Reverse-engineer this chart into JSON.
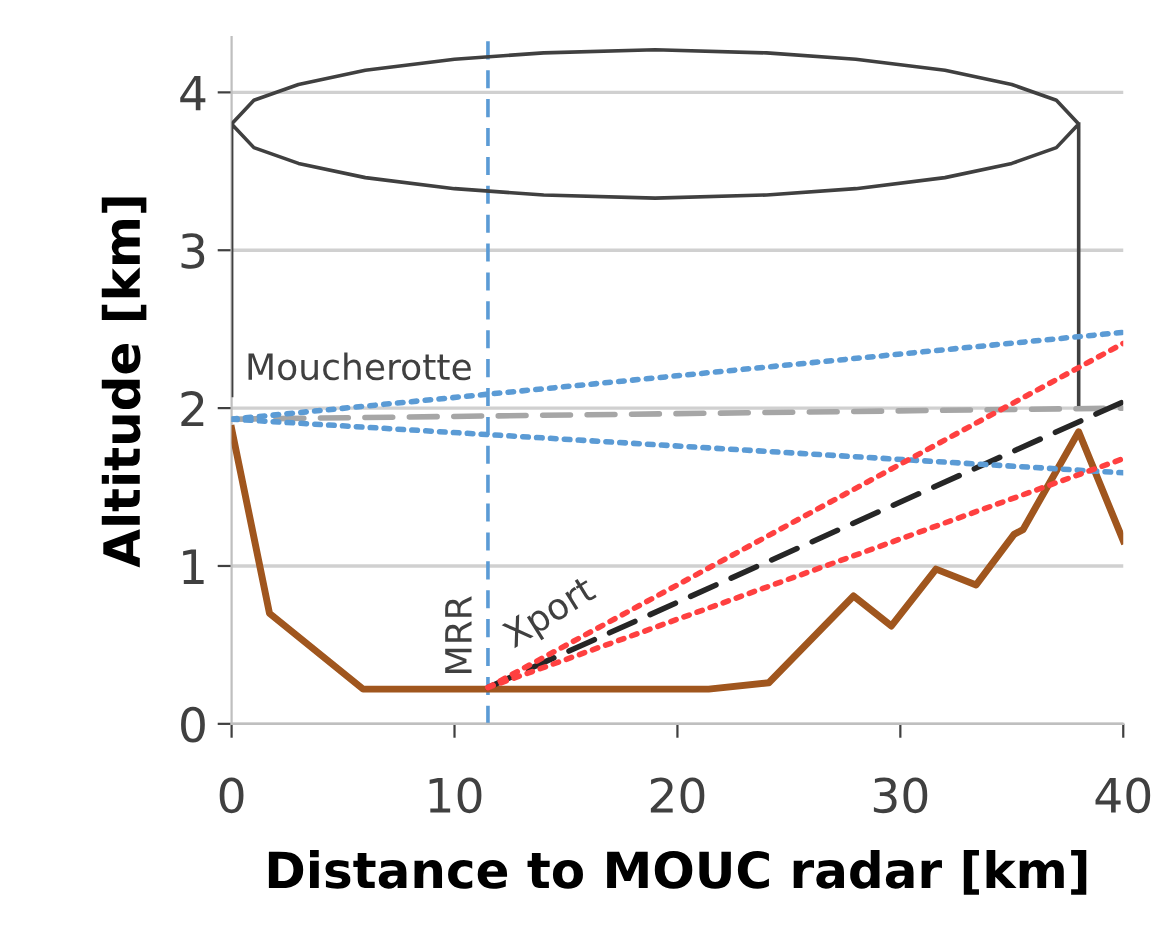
{
  "chart_data": {
    "type": "line",
    "xlabel": "Distance to MOUC radar [km]",
    "ylabel": "Altitude [km]",
    "xlim": [
      0,
      40
    ],
    "ylim": [
      0,
      4.35
    ],
    "xticks": [
      0,
      10,
      20,
      30,
      40
    ],
    "yticks": [
      0,
      1,
      2,
      3,
      4
    ],
    "grid": "y",
    "marker": "none",
    "series": [
      {
        "color": "#a0561e",
        "line_style": "solid",
        "x": [
          0,
          1.7,
          5.9,
          21.4,
          24.1,
          27.9,
          29.6,
          31.6,
          33.4,
          35.1,
          35.5,
          38.0,
          40
        ],
        "values": [
          1.87,
          0.7,
          0.22,
          0.22,
          0.26,
          0.81,
          0.62,
          0.98,
          0.88,
          1.2,
          1.23,
          1.85,
          1.16
        ]
      },
      {
        "color": "#404040",
        "line_style": "solid",
        "x": [
          0,
          0,
          1,
          3,
          6,
          10,
          14,
          19,
          24,
          28,
          32,
          35,
          37,
          38,
          37,
          35,
          32,
          28,
          24,
          19,
          14,
          10,
          6,
          3,
          1,
          0,
          19,
          38,
          38
        ],
        "values": [
          2.08,
          3.8,
          3.95,
          4.05,
          4.14,
          4.21,
          4.25,
          4.27,
          4.25,
          4.21,
          4.14,
          4.05,
          3.95,
          3.8,
          3.65,
          3.55,
          3.46,
          3.39,
          3.35,
          3.33,
          3.35,
          3.39,
          3.46,
          3.55,
          3.65,
          3.8,
          null,
          3.8,
          2.0
        ]
      },
      {
        "color": "#a6a6a6",
        "line_style": "dashed",
        "x": [
          0,
          40
        ],
        "values": [
          1.93,
          2.0
        ]
      },
      {
        "color": "#5b9bd5",
        "line_style": "dotted",
        "x": [
          0,
          40
        ],
        "values": [
          1.93,
          2.48
        ]
      },
      {
        "color": "#5b9bd5",
        "line_style": "dotted",
        "x": [
          0,
          40
        ],
        "values": [
          1.93,
          1.59
        ]
      },
      {
        "color": "#ff4040",
        "line_style": "dotted",
        "x": [
          11.5,
          40
        ],
        "values": [
          0.23,
          2.41
        ]
      },
      {
        "color": "#ff4040",
        "line_style": "dotted",
        "x": [
          11.5,
          40
        ],
        "values": [
          0.23,
          1.68
        ]
      },
      {
        "color": "#262626",
        "line_style": "dashed",
        "x": [
          11.5,
          40
        ],
        "values": [
          0.23,
          2.04
        ]
      }
    ],
    "ref_lines": [
      {
        "axis": "x",
        "value": 11.5,
        "label": "MRR",
        "color": "#5b9bd5",
        "line_style": "dashed"
      }
    ],
    "annotations": [
      "Moucherotte",
      "Xport"
    ]
  }
}
